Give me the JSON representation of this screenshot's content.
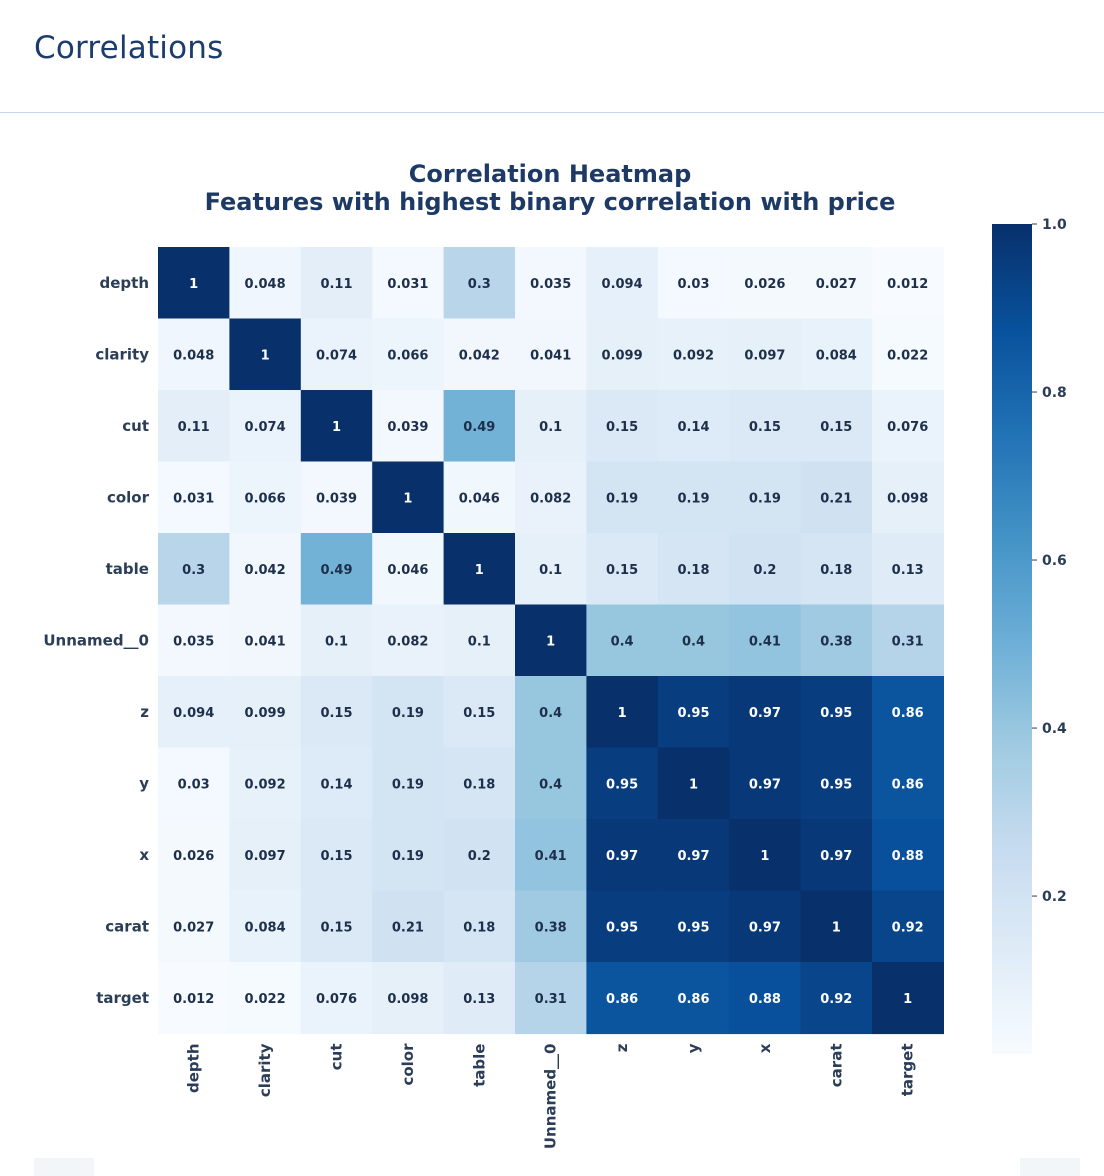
{
  "page": {
    "title": "Correlations"
  },
  "colors": {
    "low": "#f7fbff",
    "mid": "#6baed6",
    "high": "#08306b"
  },
  "chart_data": {
    "type": "heatmap",
    "title_lines": [
      "Correlation Heatmap",
      "Features with highest binary correlation with price"
    ],
    "rows": [
      "depth",
      "clarity",
      "cut",
      "color",
      "table",
      "Unnamed__0",
      "z",
      "y",
      "x",
      "carat",
      "target"
    ],
    "columns": [
      "depth",
      "clarity",
      "cut",
      "color",
      "table",
      "Unnamed__0",
      "z",
      "y",
      "x",
      "carat",
      "target"
    ],
    "values": [
      [
        1,
        0.048,
        0.11,
        0.031,
        0.3,
        0.035,
        0.094,
        0.03,
        0.026,
        0.027,
        0.012
      ],
      [
        0.048,
        1,
        0.074,
        0.066,
        0.042,
        0.041,
        0.099,
        0.092,
        0.097,
        0.084,
        0.022
      ],
      [
        0.11,
        0.074,
        1,
        0.039,
        0.49,
        0.1,
        0.15,
        0.14,
        0.15,
        0.15,
        0.076
      ],
      [
        0.031,
        0.066,
        0.039,
        1,
        0.046,
        0.082,
        0.19,
        0.19,
        0.19,
        0.21,
        0.098
      ],
      [
        0.3,
        0.042,
        0.49,
        0.046,
        1,
        0.1,
        0.15,
        0.18,
        0.2,
        0.18,
        0.13
      ],
      [
        0.035,
        0.041,
        0.1,
        0.082,
        0.1,
        1,
        0.4,
        0.4,
        0.41,
        0.38,
        0.31
      ],
      [
        0.094,
        0.099,
        0.15,
        0.19,
        0.15,
        0.4,
        1,
        0.95,
        0.97,
        0.95,
        0.86
      ],
      [
        0.03,
        0.092,
        0.14,
        0.19,
        0.18,
        0.4,
        0.95,
        1,
        0.97,
        0.95,
        0.86
      ],
      [
        0.026,
        0.097,
        0.15,
        0.19,
        0.2,
        0.41,
        0.97,
        0.97,
        1,
        0.97,
        0.88
      ],
      [
        0.027,
        0.084,
        0.15,
        0.21,
        0.18,
        0.38,
        0.95,
        0.95,
        0.97,
        1,
        0.92
      ],
      [
        0.012,
        0.022,
        0.076,
        0.098,
        0.13,
        0.31,
        0.86,
        0.86,
        0.88,
        0.92,
        1
      ]
    ],
    "colorbar": {
      "range": [
        0.012,
        1.0
      ],
      "ticks": [
        "1.0",
        "0.8",
        "0.6",
        "0.4",
        "0.2"
      ],
      "tick_values": [
        1.0,
        0.8,
        0.6,
        0.4,
        0.2
      ],
      "colormap": "Blues"
    }
  }
}
